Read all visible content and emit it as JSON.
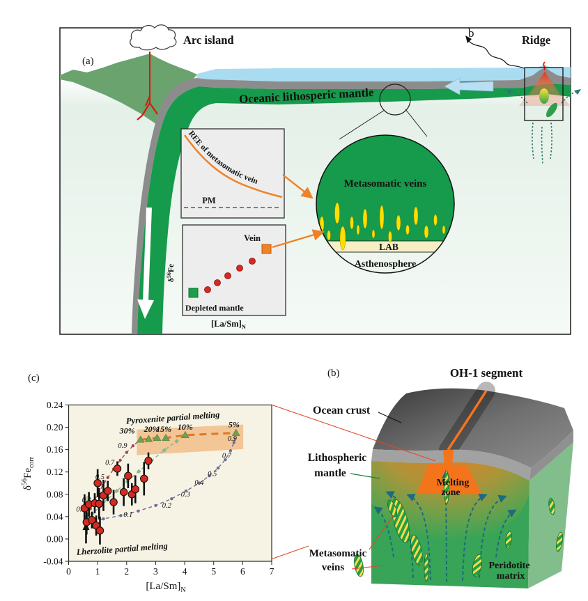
{
  "colors": {
    "slab_green": "#169a4b",
    "island_green": "#6ba36f",
    "water_blue": "#a9dcf1",
    "crust_gray": "#8c8c8c",
    "vein_yellow": "#ffdf00",
    "orange_accent": "#f08226",
    "data_point_red": "#d42a20",
    "maroon_curve": "#a84848",
    "green_curve": "#85b88a",
    "purple_curve": "#6e6e96",
    "triangle_green": "#6da053",
    "percent_label": "#d8502a",
    "melt_orange": "#f4741c",
    "chart_bg": "#f6f3e4"
  },
  "panel_a": {
    "label": "(a)",
    "arc_island_label": "Arc island",
    "mantle_label": "Oceanic lithosperic mantle",
    "b_pointer_label": "b",
    "ridge_label": "Ridge",
    "ree_inset": {
      "curve_label": "REE of metasomatic vein",
      "pm_label": "PM"
    },
    "fe_inset": {
      "ylabel_delta": "δ",
      "ylabel_sup": "56",
      "ylabel_main": "Fe",
      "xlabel_main": "[La/Sm]",
      "xlabel_sub": "N",
      "vein_label": "Vein",
      "depleted_label": "Depleted mantle"
    },
    "zoom_circle": {
      "veins_label": "Metasomatic veins",
      "lab_label": "LAB",
      "asthenosphere_label": "Asthenosphere"
    }
  },
  "panel_b": {
    "label": "(b)",
    "title": "OH-1 segment",
    "ocean_crust_label": "Ocean crust",
    "lithospheric_mantle_label_1": "Lithospheric",
    "lithospheric_mantle_label_2": "mantle",
    "melting_zone_label_1": "Melting",
    "melting_zone_label_2": "zone",
    "metasomatic_veins_label_1": "Metasomatic",
    "metasomatic_veins_label_2": "veins",
    "peridotite_matrix_label_1": "Peridotite",
    "peridotite_matrix_label_2": "matrix"
  },
  "panel_c": {
    "label": "(c)",
    "ylabel": {
      "delta": "δ",
      "sup": "56",
      "main": "Fe",
      "sub": "corr"
    },
    "xlabel": {
      "main": "[La/Sm]",
      "sub": "N"
    }
  },
  "chart_data": {
    "type": "scatter",
    "title": "",
    "xlabel": "[La/Sm]N",
    "ylabel": "δ56Fe_corr",
    "xlim": [
      0,
      7
    ],
    "ylim": [
      -0.04,
      0.24
    ],
    "xticks": [
      0,
      1,
      2,
      3,
      4,
      5,
      6,
      7
    ],
    "yticks": [
      -0.04,
      0.0,
      0.04,
      0.08,
      0.12,
      0.16,
      0.2,
      0.24
    ],
    "grid": false,
    "points": {
      "name": "peridotite-samples",
      "color": "#d42a20",
      "data": [
        [
          0.55,
          0.055,
          0.025
        ],
        [
          0.62,
          0.03,
          0.022
        ],
        [
          0.7,
          0.062,
          0.022
        ],
        [
          0.8,
          0.034,
          0.015
        ],
        [
          0.9,
          0.064,
          0.018
        ],
        [
          0.95,
          0.024,
          0.018
        ],
        [
          1.0,
          0.1,
          0.025
        ],
        [
          1.05,
          0.063,
          0.028
        ],
        [
          1.08,
          0.015,
          0.025
        ],
        [
          1.2,
          0.078,
          0.028
        ],
        [
          1.35,
          0.086,
          0.018
        ],
        [
          1.55,
          0.066,
          0.022
        ],
        [
          1.68,
          0.126,
          0.013
        ],
        [
          1.9,
          0.084,
          0.025
        ],
        [
          2.05,
          0.113,
          0.022
        ],
        [
          2.18,
          0.08,
          0.02
        ],
        [
          2.3,
          0.089,
          0.025
        ],
        [
          2.6,
          0.108,
          0.03
        ],
        [
          2.75,
          0.14,
          0.015
        ]
      ]
    },
    "curves": [
      {
        "name": "pyroxenite-melting-trajectory",
        "color": "#a84848",
        "dash": "5,4",
        "marker": "dot",
        "points": [
          [
            0.62,
            0.04
          ],
          [
            0.75,
            0.054
          ],
          [
            0.88,
            0.068
          ],
          [
            1.02,
            0.082
          ],
          [
            1.18,
            0.096
          ],
          [
            1.35,
            0.11
          ],
          [
            1.55,
            0.125
          ],
          [
            1.78,
            0.141
          ],
          [
            2.0,
            0.155
          ],
          [
            2.22,
            0.167
          ],
          [
            2.48,
            0.178
          ]
        ],
        "labels": [
          {
            "t": "0.1",
            "x": 0.42,
            "y": 0.049
          },
          {
            "t": "0.3",
            "x": 0.62,
            "y": 0.066
          },
          {
            "t": "0.5",
            "x": 1.08,
            "y": 0.107
          },
          {
            "t": "0.7",
            "x": 1.42,
            "y": 0.133
          },
          {
            "t": "0.9",
            "x": 1.86,
            "y": 0.163
          }
        ]
      },
      {
        "name": "vein-peridotite-mixing-trajectory",
        "color": "#85b88a",
        "dash": "5,4",
        "marker": "diamond",
        "points": [
          [
            0.6,
            0.034
          ],
          [
            0.82,
            0.045
          ],
          [
            1.06,
            0.057
          ],
          [
            1.34,
            0.071
          ],
          [
            1.66,
            0.086
          ],
          [
            2.02,
            0.103
          ],
          [
            2.42,
            0.121
          ],
          [
            2.85,
            0.14
          ],
          [
            3.3,
            0.159
          ],
          [
            3.72,
            0.175
          ],
          [
            4.02,
            0.186
          ]
        ],
        "labels": []
      },
      {
        "name": "lherzolite-melting-trajectory",
        "color": "#6e6e96",
        "dash": "5,4",
        "marker": "dot",
        "points": [
          [
            0.65,
            0.031
          ],
          [
            1.2,
            0.036
          ],
          [
            1.8,
            0.042
          ],
          [
            2.4,
            0.05
          ],
          [
            3.0,
            0.06
          ],
          [
            3.55,
            0.072
          ],
          [
            4.05,
            0.086
          ],
          [
            4.5,
            0.1
          ],
          [
            4.85,
            0.113
          ],
          [
            5.15,
            0.127
          ],
          [
            5.4,
            0.142
          ],
          [
            5.58,
            0.158
          ],
          [
            5.7,
            0.173
          ],
          [
            5.77,
            0.19
          ]
        ],
        "labels": [
          {
            "t": "0.1",
            "x": 2.05,
            "y": 0.04
          },
          {
            "t": "0.2",
            "x": 3.38,
            "y": 0.056
          },
          {
            "t": "0.3",
            "x": 4.03,
            "y": 0.076
          },
          {
            "t": "0.4",
            "x": 4.5,
            "y": 0.097
          },
          {
            "t": "0.5",
            "x": 4.95,
            "y": 0.113
          },
          {
            "t": "0.7",
            "x": 5.45,
            "y": 0.145
          },
          {
            "t": "0.9",
            "x": 5.64,
            "y": 0.176
          }
        ]
      }
    ],
    "pyroxenite_line": {
      "color": "#e07820",
      "dash": "10,7",
      "triangle_color": "#6da053",
      "label_color": "#d8502a",
      "points": [
        [
          2.48,
          0.178
        ],
        [
          2.76,
          0.179
        ],
        [
          3.05,
          0.181
        ],
        [
          3.35,
          0.181
        ],
        [
          4.02,
          0.186
        ],
        [
          5.77,
          0.19
        ]
      ],
      "percent_labels": [
        {
          "t": "30%",
          "x": 2.02,
          "y": 0.189
        },
        {
          "t": "20%",
          "x": 2.86,
          "y": 0.192
        },
        {
          "t": "15%",
          "x": 3.28,
          "y": 0.192
        },
        {
          "t": "10%",
          "x": 4.02,
          "y": 0.196
        },
        {
          "t": "5%",
          "x": 5.7,
          "y": 0.2
        }
      ],
      "band": [
        [
          2.35,
          0.196
        ],
        [
          6.02,
          0.205
        ],
        [
          6.02,
          0.161
        ],
        [
          2.35,
          0.15
        ]
      ],
      "band_color": "rgba(238,160,88,0.55)"
    },
    "lherzolite_band": {
      "polygon": [
        [
          0.5,
          0.028
        ],
        [
          0.5,
          0.072
        ],
        [
          0.72,
          0.08
        ],
        [
          0.72,
          0.036
        ]
      ],
      "color": "rgba(125,178,118,0.55)"
    },
    "annotations": [
      {
        "t": "Pyroxenite partial melting",
        "x": 3.6,
        "y": 0.212,
        "rotate": -4,
        "color": "#111111"
      },
      {
        "t": "Lherzolite partial melting",
        "x": 1.85,
        "y": -0.023,
        "rotate": -4,
        "color": "#111111"
      }
    ]
  }
}
